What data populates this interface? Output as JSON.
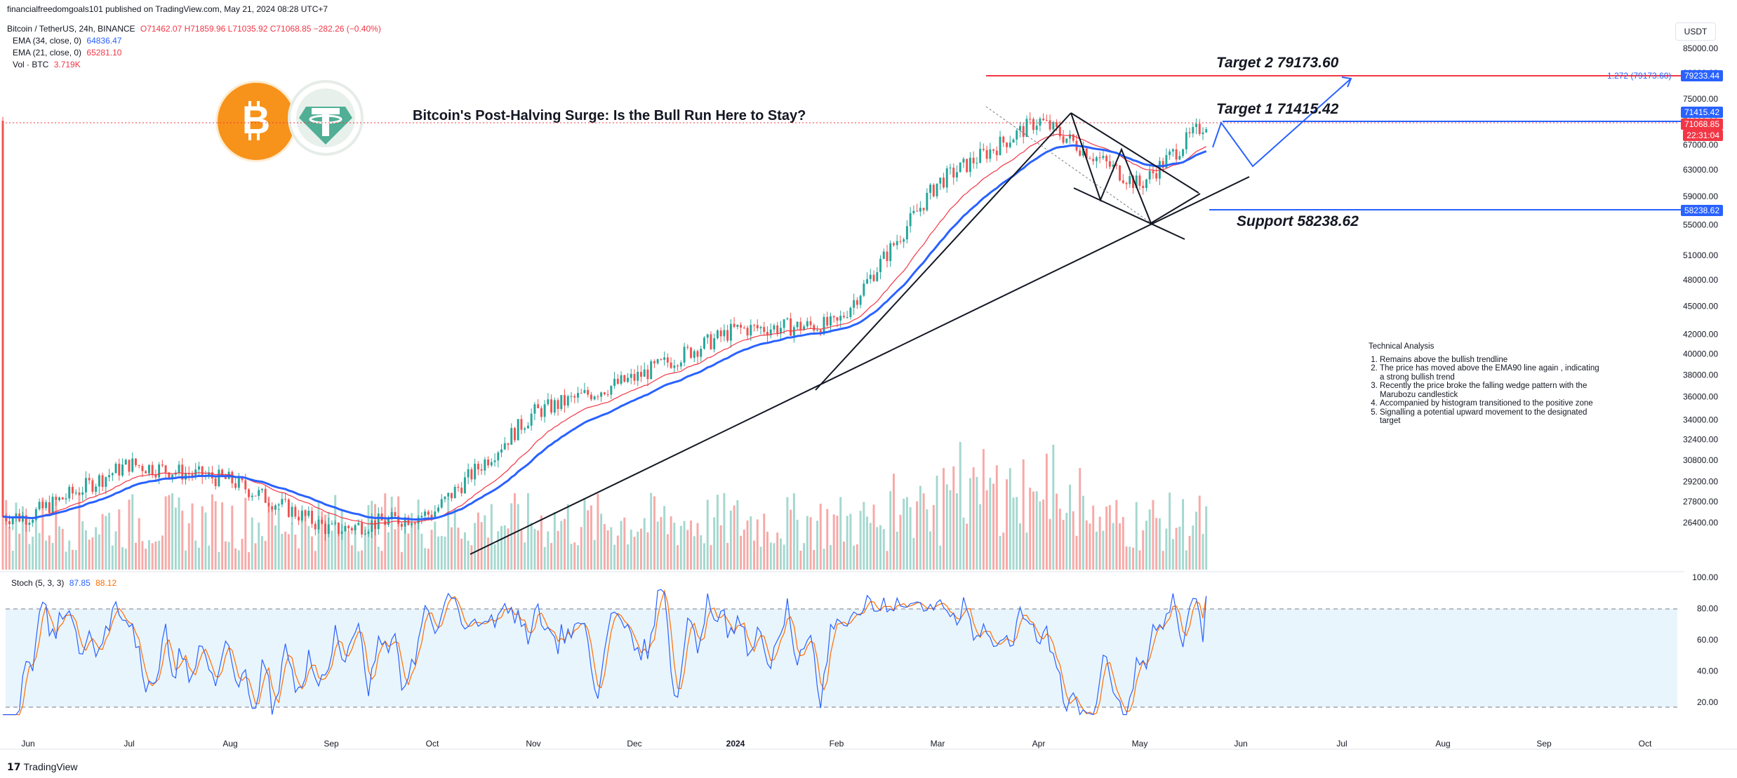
{
  "header": {
    "published": "financialfreedomgoals101 published on TradingView.com, May 21, 2024 08:28 UTC+7",
    "symbol": "Bitcoin / TetherUS, 24h, BINANCE",
    "ohlc": "O71462.07 H71859.96 L71035.92 C71068.85 −282.26 (−0.40%)"
  },
  "indicators": [
    {
      "label": "EMA (34, close, 0)",
      "value": "64836.47",
      "color": "#2962ff"
    },
    {
      "label": "EMA (21, close, 0)",
      "value": "65281.10",
      "color": "#f23645"
    },
    {
      "label": "Vol · BTC",
      "value": "3.719K",
      "color": "#f23645"
    }
  ],
  "currency_button": "USDT",
  "headline": "Bitcoin's Post-Halving Surge: Is the Bull Run Here to Stay?",
  "annotations": {
    "target2": "Target 2  79173.60",
    "target1": "Target 1  71415.42",
    "support": "Support 58238.62",
    "fib_label": "1.272 (79173.60)"
  },
  "technical_analysis": {
    "title": "Technical Analysis",
    "items": [
      "Remains above the bullish trendline",
      "The price has moved above the EMA90 line again , indicating a strong bullish trend",
      "Recently the price broke the falling wedge pattern with the Marubozu candlestick",
      "Accompanied by histogram transitioned to the positive zone",
      "Signalling a potential upward movement to the designated target"
    ]
  },
  "price_badges": [
    {
      "text": "79233.44",
      "color": "#2962ff"
    },
    {
      "text": "71415.42",
      "color": "#2962ff"
    },
    {
      "text": "71068.85",
      "color": "#f23645"
    },
    {
      "text": "22:31:04",
      "color": "#f23645"
    },
    {
      "text": "58238.62",
      "color": "#2962ff"
    }
  ],
  "stoch_legend": {
    "label": "Stoch (5, 3, 3)",
    "k": "87.85",
    "d": "88.12",
    "k_color": "#2962ff",
    "d_color": "#ff6d00"
  },
  "footer_logo": "TradingView",
  "chart_data": [
    {
      "type": "line",
      "title": "Bitcoin / TetherUS, 24h, BINANCE",
      "ylim": [
        24000,
        86000
      ],
      "y_scale": "log",
      "y_ticks": [
        "85000.00",
        "80000.00",
        "75000.00",
        "71000.00",
        "67000.00",
        "63000.00",
        "59000.00",
        "55000.00",
        "51000.00",
        "48000.00",
        "45000.00",
        "42000.00",
        "40000.00",
        "38000.00",
        "36000.00",
        "34000.00",
        "32400.00",
        "30800.00",
        "29200.00",
        "27800.00",
        "26400.00"
      ],
      "x_ticks": [
        "Jun",
        "Jul",
        "Aug",
        "Sep",
        "Oct",
        "Nov",
        "Dec",
        "2024",
        "Feb",
        "Mar",
        "Apr",
        "May",
        "Jun",
        "Jul",
        "Aug",
        "Sep",
        "Oct"
      ],
      "close_anchors": {
        "months": [
          0,
          1,
          2,
          3,
          4,
          5,
          6,
          7,
          8,
          9,
          10,
          11,
          11.67
        ],
        "values": [
          26800,
          30500,
          29300,
          25900,
          27000,
          34600,
          37700,
          42500,
          43000,
          61000,
          71200,
          60600,
          71068.85
        ]
      },
      "series": [
        {
          "name": "EMA (34, close, 0)",
          "color": "#2962ff"
        },
        {
          "name": "EMA (21, close, 0)",
          "color": "#f23645"
        },
        {
          "name": "Vol · BTC",
          "color": "#26a69a"
        }
      ],
      "horizontal_levels": [
        {
          "value": 79173.6,
          "color": "#f23645"
        },
        {
          "value": 71415.42,
          "color": "#2962ff"
        },
        {
          "value": 58238.62,
          "color": "#2962ff"
        }
      ],
      "grid": false
    },
    {
      "type": "line",
      "title": "Stoch (5, 3, 3)",
      "ylim": [
        10,
        100
      ],
      "y_ticks": [
        "100.00",
        "80.00",
        "60.00",
        "40.00",
        "20.00"
      ],
      "band": [
        20,
        80
      ],
      "series": [
        {
          "name": "%K",
          "last": 87.85,
          "color": "#2962ff"
        },
        {
          "name": "%D",
          "last": 88.12,
          "color": "#ff6d00"
        }
      ]
    }
  ]
}
